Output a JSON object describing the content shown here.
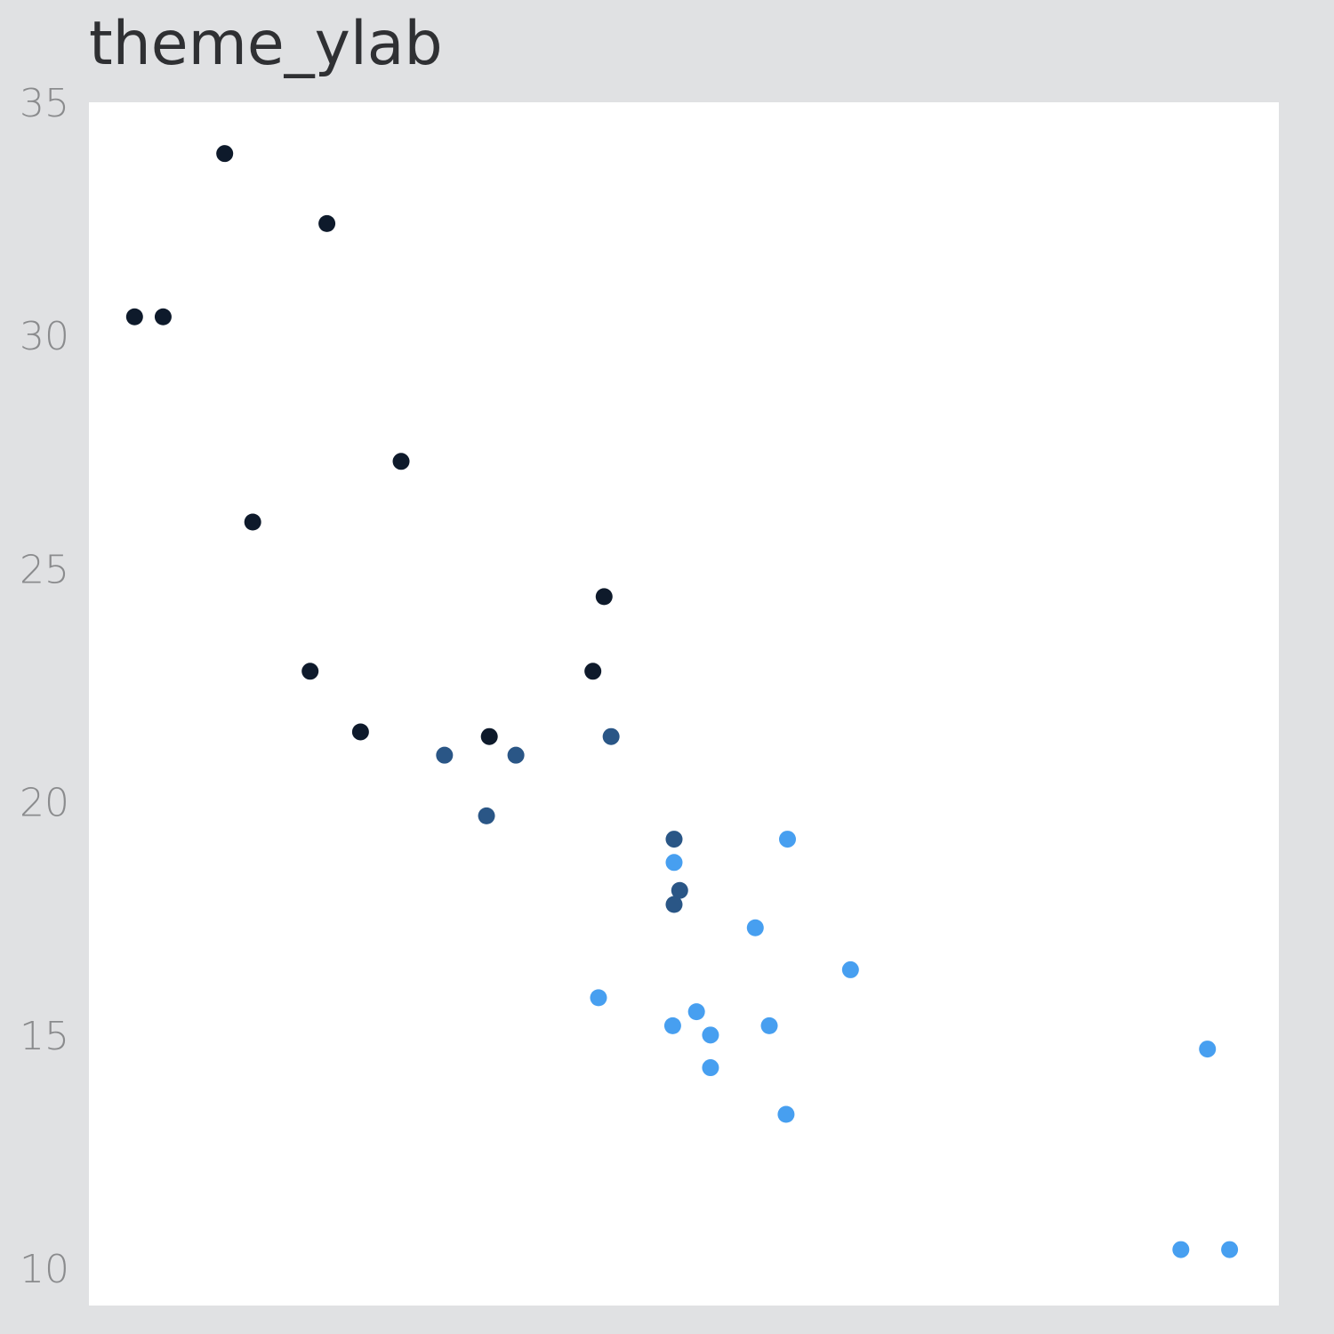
{
  "chart_data": {
    "type": "scatter",
    "title": "theme_ylab",
    "xlabel": "",
    "ylabel": "",
    "xlim": [
      1.35,
      5.6
    ],
    "ylim": [
      9.2,
      35.0
    ],
    "y_ticks": [
      10,
      15,
      20,
      25,
      30,
      35
    ],
    "show_x_ticks": false,
    "grid": false,
    "legend": "none",
    "colors": {
      "page_bg": "#e0e1e3",
      "panel_bg": "#ffffff",
      "group_4": "#0e1a2b",
      "group_6": "#2a5686",
      "group_8": "#479ff0"
    },
    "series": [
      {
        "color_key": "group_4",
        "x": [
          2.2,
          1.615,
          1.835,
          1.513,
          2.465,
          1.935,
          2.14,
          3.19,
          3.15,
          2.32,
          2.78
        ],
        "y": [
          32.4,
          30.4,
          33.9,
          30.4,
          27.3,
          26.0,
          22.8,
          24.4,
          22.8,
          21.5,
          21.4
        ]
      },
      {
        "color_key": "group_6",
        "x": [
          2.62,
          2.875,
          3.215,
          3.44,
          3.46,
          3.44,
          2.77
        ],
        "y": [
          21.0,
          21.0,
          21.4,
          17.8,
          18.1,
          19.2,
          19.7
        ]
      },
      {
        "color_key": "group_8",
        "x": [
          3.44,
          3.57,
          4.07,
          3.73,
          3.78,
          5.25,
          5.424,
          3.52,
          3.435,
          3.84,
          3.845,
          3.17,
          3.57,
          5.345
        ],
        "y": [
          18.7,
          14.3,
          16.4,
          17.3,
          15.2,
          10.4,
          10.4,
          15.5,
          15.2,
          13.3,
          19.2,
          15.8,
          15.0,
          14.7
        ]
      }
    ]
  }
}
